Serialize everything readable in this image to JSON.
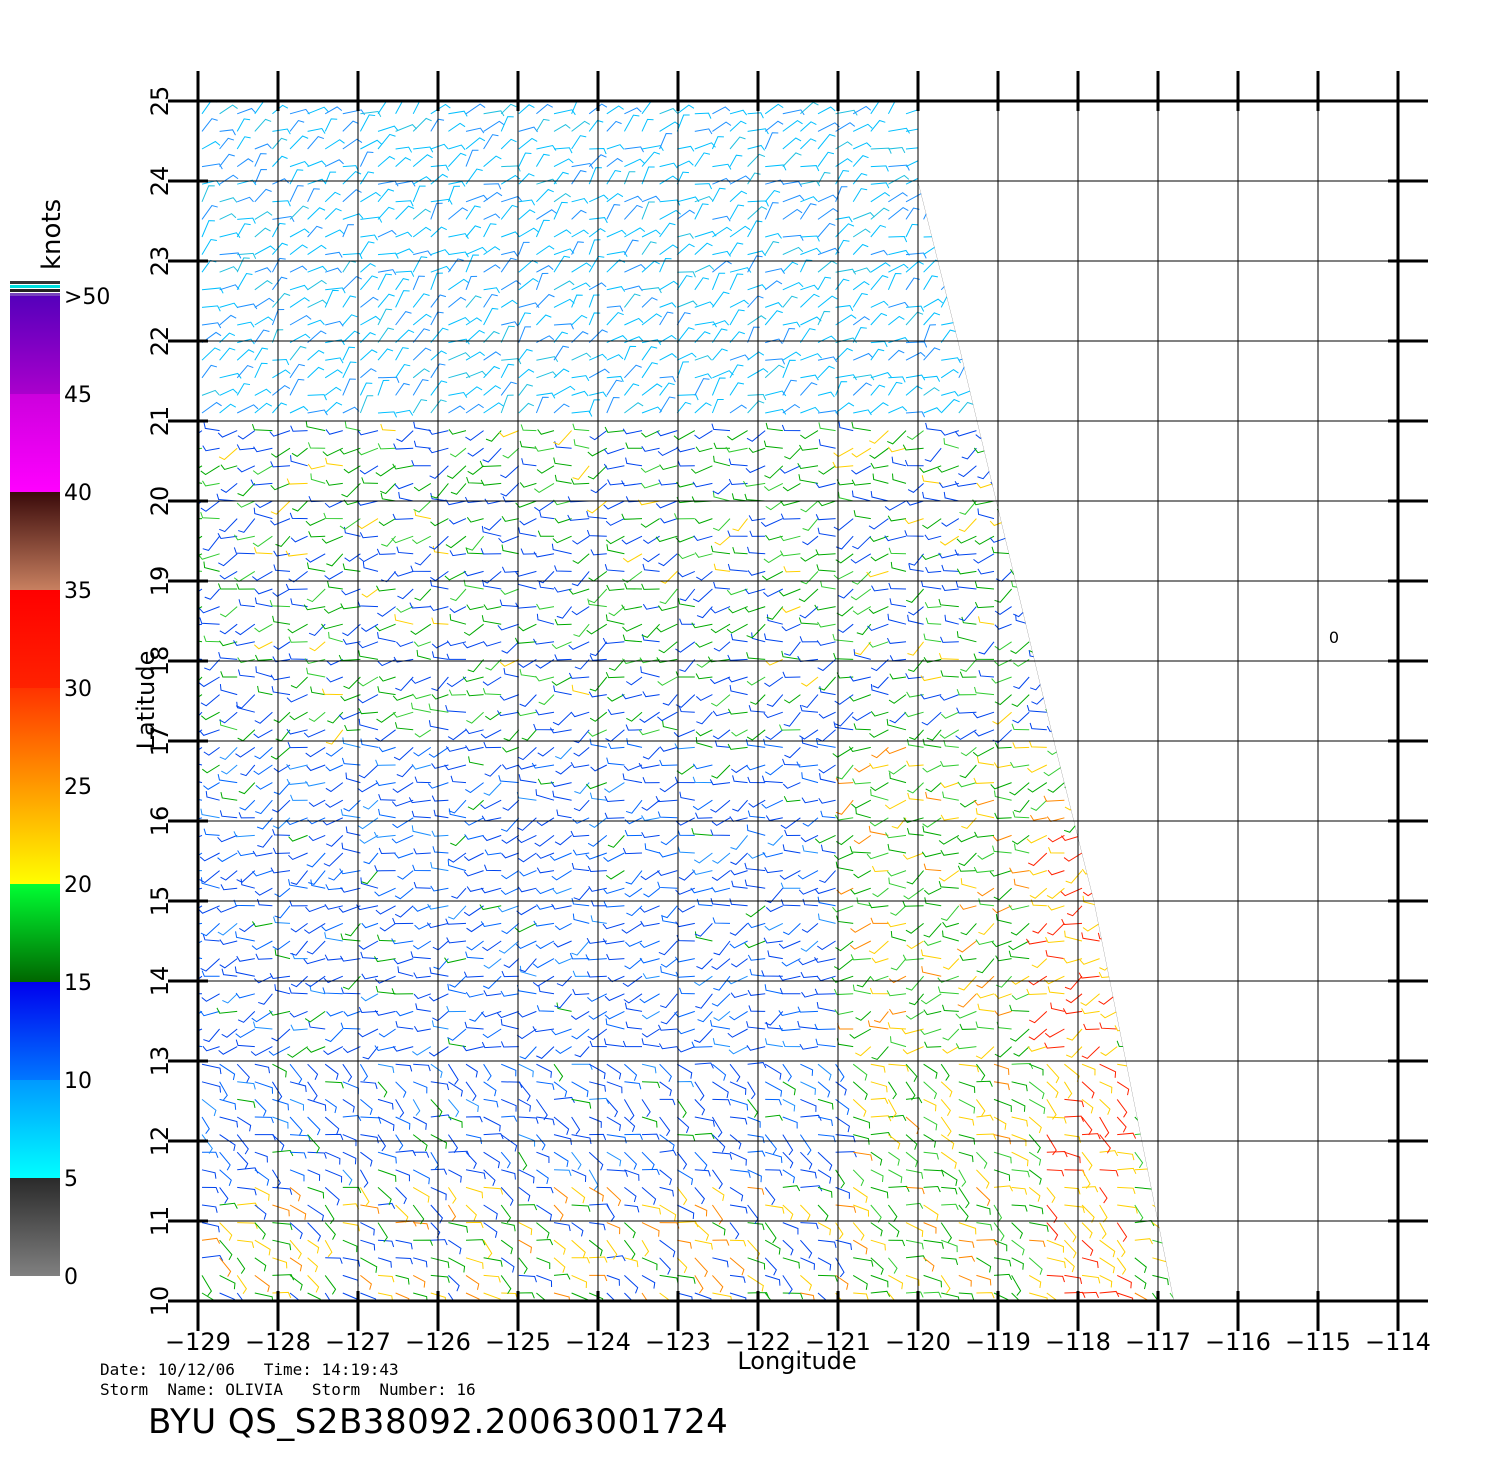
{
  "map": {
    "type": "scatterometer-wind-barbs",
    "lon_ticks": [
      "-129",
      "-128",
      "-127",
      "-126",
      "-125",
      "-124",
      "-123",
      "-122",
      "-121",
      "-120",
      "-119",
      "-118",
      "-117",
      "-116",
      "-115",
      "-114"
    ],
    "lat_ticks": [
      "10",
      "11",
      "12",
      "13",
      "14",
      "15",
      "16",
      "17",
      "18",
      "19",
      "20",
      "21",
      "22",
      "23",
      "24",
      "25"
    ],
    "xlabel": "Longitude",
    "ylabel": "Latitude",
    "lon_range": [
      -129,
      -114
    ],
    "lat_range": [
      10,
      25
    ],
    "swath_polygon": [
      [
        -129,
        25
      ],
      [
        -120,
        25
      ],
      [
        -120,
        24
      ],
      [
        -119.5,
        22
      ],
      [
        -118.3,
        17
      ],
      [
        -117.8,
        15
      ],
      [
        -117.2,
        12
      ],
      [
        -116.8,
        10
      ],
      [
        -129,
        10
      ]
    ],
    "marker_label": "0",
    "marker_position": [
      -114.8,
      18.3
    ],
    "grid": true
  },
  "colorbar": {
    "unit": "knots",
    "tick_labels": [
      "0",
      "5",
      "10",
      "15",
      "20",
      "25",
      "30",
      "35",
      "40",
      "45",
      ">50"
    ],
    "bands": [
      {
        "from": 0,
        "to": 5,
        "colors": [
          "#808080",
          "#2a2a2a"
        ]
      },
      {
        "from": 5,
        "to": 10,
        "colors": [
          "#00ffff",
          "#0099ff"
        ]
      },
      {
        "from": 10,
        "to": 15,
        "colors": [
          "#0077ff",
          "#0000ee"
        ]
      },
      {
        "from": 15,
        "to": 20,
        "colors": [
          "#006600",
          "#00ff33"
        ]
      },
      {
        "from": 20,
        "to": 25,
        "colors": [
          "#ffff00",
          "#ff9900"
        ]
      },
      {
        "from": 25,
        "to": 30,
        "colors": [
          "#ff9900",
          "#ff3300"
        ]
      },
      {
        "from": 30,
        "to": 35,
        "colors": [
          "#ff2200",
          "#ff0000"
        ]
      },
      {
        "from": 35,
        "to": 40,
        "colors": [
          "#c88060",
          "#3a0a0a"
        ]
      },
      {
        "from": 40,
        "to": 45,
        "colors": [
          "#ff00ff",
          "#cc00dd"
        ]
      },
      {
        "from": 45,
        "to": 50,
        "colors": [
          "#aa00cc",
          "#5500bb"
        ]
      }
    ]
  },
  "info": {
    "line1": "Date: 10/12/06   Time: 14:19:43",
    "line2": "Storm  Name: OLIVIA   Storm  Number: 16",
    "title": "BYU  QS_S2B38092.20063001724"
  }
}
